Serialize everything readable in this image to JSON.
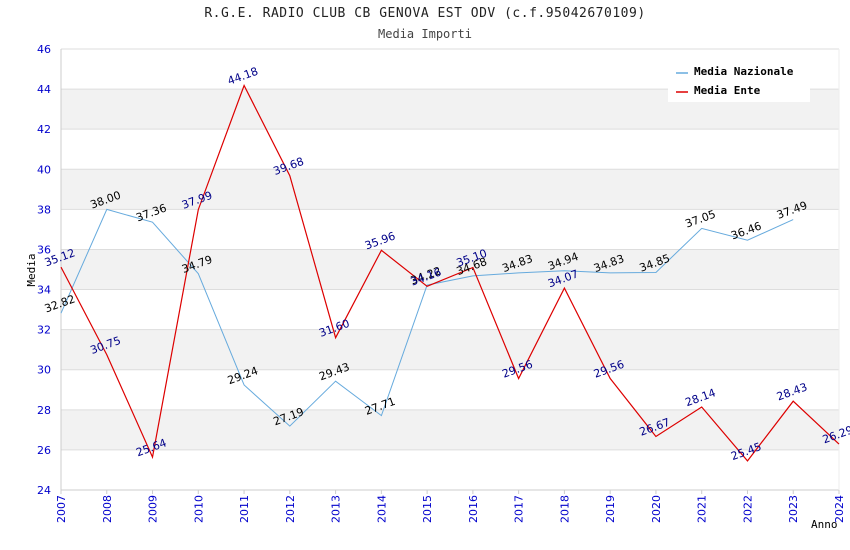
{
  "chart_data": {
    "type": "line",
    "title": "R.G.E. RADIO CLUB CB GENOVA EST ODV (c.f.95042670109)",
    "subtitle": "Media Importi",
    "xlabel": "Anno",
    "ylabel": "Media",
    "ylim": [
      24,
      46
    ],
    "yticks": [
      "24",
      "26",
      "28",
      "30",
      "32",
      "34",
      "36",
      "38",
      "40",
      "42",
      "44",
      "46"
    ],
    "x": [
      "2007",
      "2008",
      "2009",
      "2010",
      "2011",
      "2012",
      "2013",
      "2014",
      "2015",
      "2016",
      "2017",
      "2018",
      "2019",
      "2020",
      "2021",
      "2022",
      "2023",
      "2024"
    ],
    "grid": "horizontal bands",
    "legend_position": "top-right",
    "series": [
      {
        "name": "Media Nazionale",
        "color": "#66aadd",
        "label_color": "#000000",
        "values": [
          32.82,
          38.0,
          37.36,
          34.79,
          29.24,
          27.19,
          29.43,
          27.71,
          34.22,
          34.68,
          34.83,
          34.94,
          34.83,
          34.85,
          37.05,
          36.46,
          37.49,
          null
        ],
        "labels": [
          "32.82",
          "38.00",
          "37.36",
          "34.79",
          "29.24",
          "27.19",
          "29.43",
          "27.71",
          "34.22",
          "34.68",
          "34.83",
          "34.94",
          "34.83",
          "34.85",
          "37.05",
          "36.46",
          "37.49",
          ""
        ]
      },
      {
        "name": "Media Ente",
        "color": "#dd0000",
        "label_color": "#000088",
        "values": [
          35.12,
          30.75,
          25.64,
          37.99,
          44.18,
          39.68,
          31.6,
          35.96,
          34.16,
          35.1,
          29.56,
          34.07,
          29.56,
          26.67,
          28.14,
          25.45,
          28.43,
          26.29
        ],
        "labels": [
          "35.12",
          "30.75",
          "25.64",
          "37.99",
          "44.18",
          "39.68",
          "31.60",
          "35.96",
          "34.16",
          "35.10",
          "29.56",
          "34.07",
          "29.56",
          "26.67",
          "28.14",
          "25.45",
          "28.43",
          "26.29"
        ]
      }
    ]
  }
}
